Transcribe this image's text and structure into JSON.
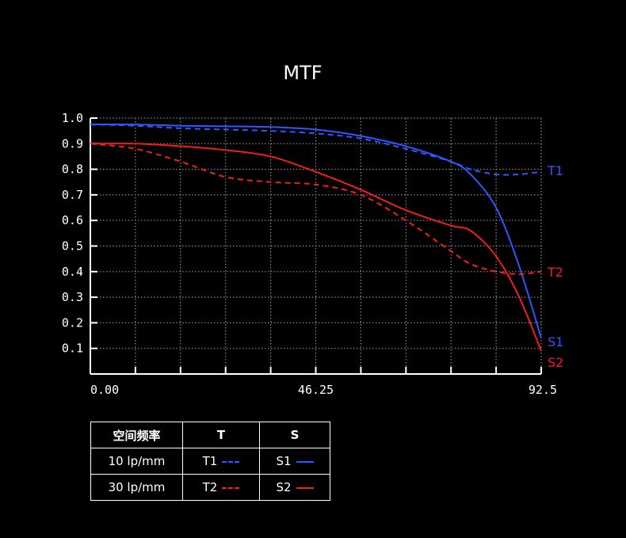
{
  "chart_data": {
    "type": "line",
    "title": "MTF",
    "xlim": [
      0,
      92.5
    ],
    "ylim": [
      0,
      1.0
    ],
    "x_ticks": [
      "0.00",
      "46.25",
      "92.5"
    ],
    "y_ticks": [
      "1.0",
      "0.9",
      "0.8",
      "0.7",
      "0.6",
      "0.5",
      "0.4",
      "0.3",
      "0.2",
      "0.1"
    ],
    "grid": true,
    "series": [
      {
        "name": "T1",
        "style": "dashed",
        "color": "#2e57ff",
        "x": [
          0,
          9.25,
          18.5,
          27.75,
          37,
          46.25,
          55.5,
          64.75,
          74,
          78,
          83.25,
          88,
          92.5
        ],
        "y": [
          0.975,
          0.97,
          0.96,
          0.955,
          0.95,
          0.94,
          0.92,
          0.88,
          0.83,
          0.8,
          0.78,
          0.78,
          0.79
        ]
      },
      {
        "name": "S1",
        "style": "solid",
        "color": "#2e57ff",
        "x": [
          0,
          9.25,
          18.5,
          27.75,
          37,
          46.25,
          55.5,
          64.75,
          74,
          78,
          83.25,
          88,
          92.5
        ],
        "y": [
          0.975,
          0.975,
          0.97,
          0.968,
          0.965,
          0.955,
          0.93,
          0.89,
          0.83,
          0.78,
          0.65,
          0.42,
          0.14
        ]
      },
      {
        "name": "T2",
        "style": "dashed",
        "color": "#f01e1e",
        "x": [
          0,
          9.25,
          18.5,
          27.75,
          37,
          46.25,
          55.5,
          64.75,
          74,
          78,
          83.25,
          88,
          92.5
        ],
        "y": [
          0.9,
          0.88,
          0.83,
          0.77,
          0.75,
          0.74,
          0.7,
          0.6,
          0.48,
          0.43,
          0.4,
          0.39,
          0.4
        ]
      },
      {
        "name": "S2",
        "style": "solid",
        "color": "#f01e1e",
        "x": [
          0,
          9.25,
          18.5,
          27.75,
          37,
          46.25,
          55.5,
          64.75,
          74,
          78,
          83.25,
          88,
          92.5
        ],
        "y": [
          0.9,
          0.9,
          0.89,
          0.875,
          0.85,
          0.79,
          0.72,
          0.64,
          0.58,
          0.56,
          0.46,
          0.3,
          0.09
        ]
      }
    ]
  },
  "legend_table": {
    "header": [
      "空间频率",
      "T",
      "S"
    ],
    "rows": [
      {
        "freq": "10 lp/mm",
        "t": "T1",
        "s": "S1"
      },
      {
        "freq": "30 lp/mm",
        "t": "T2",
        "s": "S2"
      }
    ]
  }
}
